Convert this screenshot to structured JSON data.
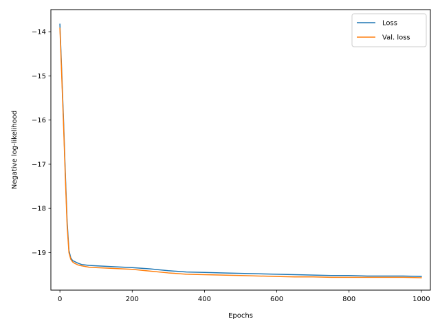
{
  "chart_data": {
    "type": "line",
    "title": "",
    "xlabel": "Epochs",
    "ylabel": "Negative log-likelihood",
    "xlim": [
      -25,
      1025
    ],
    "ylim": [
      -19.85,
      -13.5
    ],
    "xticks": [
      0,
      200,
      400,
      600,
      800,
      1000
    ],
    "yticks": [
      -14,
      -15,
      -16,
      -17,
      -18,
      -19
    ],
    "grid": false,
    "legend_position": "top-right",
    "series": [
      {
        "name": "Loss",
        "color": "#1f77b4",
        "x": [
          0,
          5,
          10,
          15,
          20,
          25,
          30,
          35,
          40,
          50,
          60,
          80,
          100,
          150,
          200,
          250,
          300,
          350,
          400,
          450,
          500,
          550,
          600,
          650,
          700,
          750,
          800,
          850,
          900,
          950,
          1000
        ],
        "y": [
          -13.83,
          -14.9,
          -16.0,
          -17.2,
          -18.3,
          -18.95,
          -19.12,
          -19.18,
          -19.2,
          -19.24,
          -19.27,
          -19.29,
          -19.3,
          -19.32,
          -19.34,
          -19.37,
          -19.41,
          -19.44,
          -19.45,
          -19.46,
          -19.47,
          -19.48,
          -19.49,
          -19.5,
          -19.51,
          -19.52,
          -19.52,
          -19.53,
          -19.53,
          -19.53,
          -19.54
        ]
      },
      {
        "name": "Val. loss",
        "color": "#ff7f0e",
        "x": [
          0,
          5,
          10,
          15,
          20,
          25,
          30,
          35,
          40,
          50,
          60,
          80,
          100,
          150,
          200,
          250,
          300,
          350,
          400,
          450,
          500,
          550,
          600,
          650,
          700,
          750,
          800,
          850,
          900,
          950,
          1000
        ],
        "y": [
          -13.92,
          -15.0,
          -16.1,
          -17.3,
          -18.4,
          -19.0,
          -19.15,
          -19.21,
          -19.24,
          -19.28,
          -19.3,
          -19.33,
          -19.34,
          -19.36,
          -19.38,
          -19.42,
          -19.46,
          -19.49,
          -19.5,
          -19.51,
          -19.52,
          -19.53,
          -19.54,
          -19.55,
          -19.55,
          -19.56,
          -19.56,
          -19.56,
          -19.56,
          -19.56,
          -19.57
        ]
      }
    ]
  }
}
